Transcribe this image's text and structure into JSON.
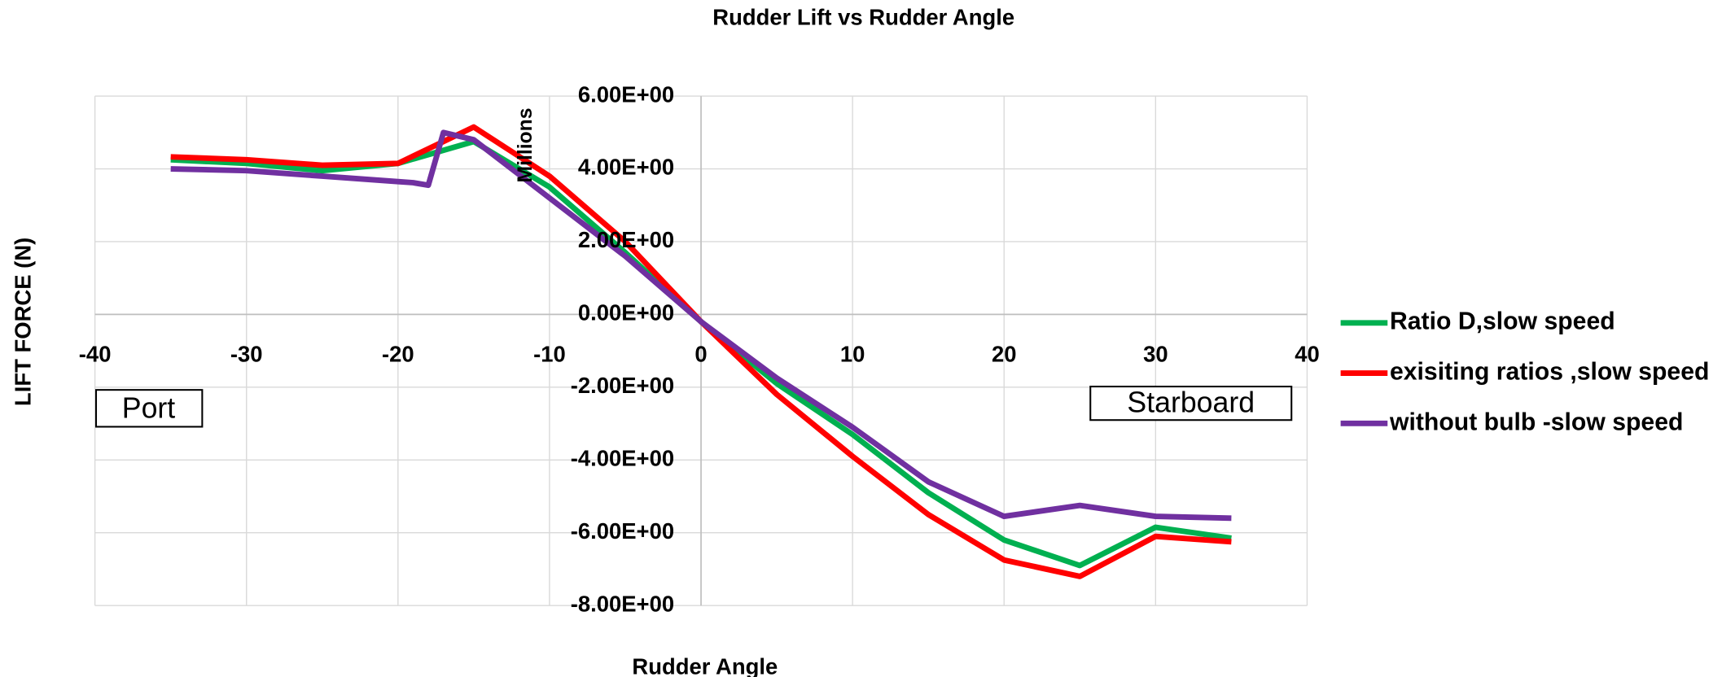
{
  "chart_data": {
    "type": "line",
    "title": "Rudder Lift vs Rudder Angle",
    "x_label": "Rudder Angle",
    "y_label": "LIFT FORCE (N)",
    "y_unit_label": "Millions",
    "annotations": [
      "Port",
      "Starboard"
    ],
    "xlim": [
      -40,
      40
    ],
    "xticks": [
      -40,
      -30,
      -20,
      -10,
      0,
      10,
      20,
      30,
      40
    ],
    "ylim": [
      -8,
      6
    ],
    "yticks": [
      {
        "value": -8,
        "label": "-8.00E+00"
      },
      {
        "value": -6,
        "label": "-6.00E+00"
      },
      {
        "value": -4,
        "label": "-4.00E+00"
      },
      {
        "value": -2,
        "label": "-2.00E+00"
      },
      {
        "value": 0,
        "label": "0.00E+00"
      },
      {
        "value": 2,
        "label": "2.00E+00"
      },
      {
        "value": 4,
        "label": "4.00E+00"
      },
      {
        "value": 6,
        "label": "6.00E+00"
      }
    ],
    "grid": true,
    "legend": "right",
    "series": [
      {
        "name": "Ratio D,slow speed",
        "color": "#00b050",
        "x": [
          -35,
          -30,
          -25,
          -20,
          -15,
          -10,
          -5,
          0,
          5,
          10,
          15,
          20,
          25,
          30,
          35
        ],
        "values": [
          4.25,
          4.15,
          3.95,
          4.15,
          4.75,
          3.5,
          1.7,
          -0.2,
          -1.9,
          -3.3,
          -4.9,
          -6.2,
          -6.9,
          -5.85,
          -6.15
        ]
      },
      {
        "name": "exisiting ratios ,slow speed",
        "color": "#ff0000",
        "x": [
          -35,
          -30,
          -25,
          -20,
          -15,
          -10,
          -5,
          0,
          5,
          10,
          15,
          20,
          25,
          30,
          35
        ],
        "values": [
          4.33,
          4.25,
          4.1,
          4.15,
          5.15,
          3.8,
          2.0,
          -0.2,
          -2.2,
          -3.9,
          -5.5,
          -6.75,
          -7.2,
          -6.1,
          -6.25
        ]
      },
      {
        "name": "without bulb -slow speed",
        "color": "#7030a0",
        "x": [
          -35,
          -30,
          -25,
          -20,
          -19,
          -18,
          -17,
          -15,
          -10,
          -5,
          0,
          5,
          10,
          15,
          20,
          25,
          30,
          35
        ],
        "values": [
          4.0,
          3.95,
          3.8,
          3.65,
          3.62,
          3.55,
          5.0,
          4.8,
          3.2,
          1.6,
          -0.2,
          -1.75,
          -3.1,
          -4.6,
          -5.55,
          -5.25,
          -5.55,
          -5.6
        ]
      }
    ]
  }
}
